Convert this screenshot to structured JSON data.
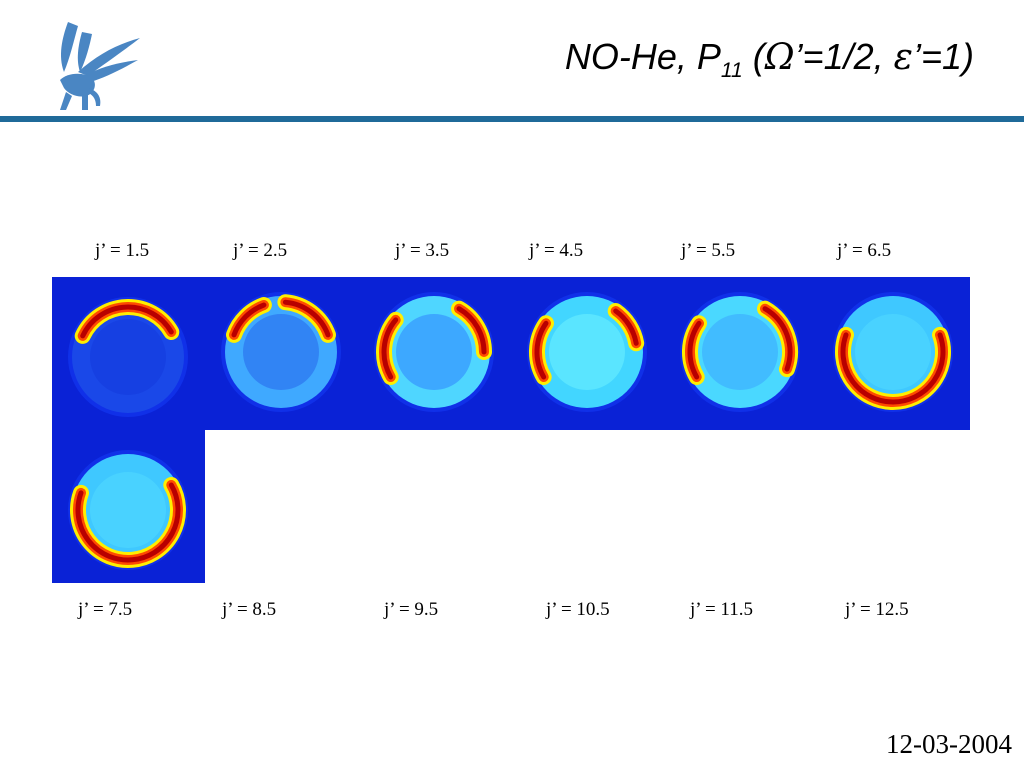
{
  "header": {
    "title_prefix": "NO-He, P",
    "title_sub": "11",
    "title_open": " (",
    "omega": "Ω",
    "title_mid": "’=1/2, ",
    "epsilon": "ε",
    "title_end": "’=1)"
  },
  "top_labels": [
    "j’ = 1.5",
    "j’ = 2.5",
    "j’ = 3.5",
    "j’ = 4.5",
    "j’ = 5.5",
    "j’ = 6.5"
  ],
  "bottom_labels": [
    "j’ = 7.5",
    "j’ = 8.5",
    "j’ = 9.5",
    "j’ = 10.5",
    "j’ = 11.5",
    "j’ = 12.5"
  ],
  "footer": {
    "date": "12-03-2004"
  },
  "colors": {
    "rule": "#1f6a99",
    "logo": "#4a86c3",
    "tile_background": "#0a22d6",
    "colormap": [
      "#000080",
      "#0033ff",
      "#00ccff",
      "#7fff80",
      "#ffff00",
      "#ff5500",
      "#a00000"
    ]
  }
}
